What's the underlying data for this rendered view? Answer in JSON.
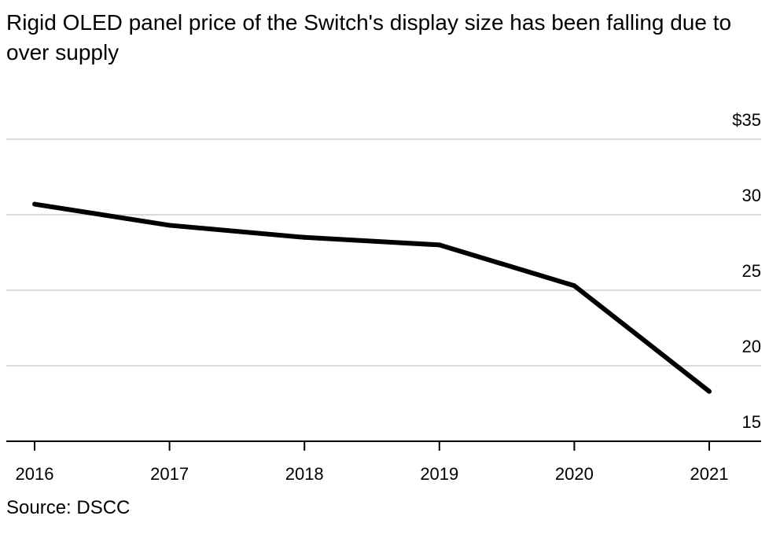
{
  "chart_data": {
    "type": "line",
    "title": "Rigid OLED panel price of the Switch's display size has been falling due to over supply",
    "categories": [
      "2016",
      "2017",
      "2018",
      "2019",
      "2020",
      "2021"
    ],
    "series": [
      {
        "name": "Rigid OLED panel price",
        "values": [
          30.7,
          29.3,
          28.5,
          28.0,
          25.3,
          18.3
        ]
      }
    ],
    "ylim": [
      15,
      35
    ],
    "yticks": [
      {
        "value": 35,
        "label": "$35"
      },
      {
        "value": 30,
        "label": "30"
      },
      {
        "value": 25,
        "label": "25"
      },
      {
        "value": 20,
        "label": "20"
      },
      {
        "value": 15,
        "label": "15"
      }
    ],
    "xlabel": "",
    "ylabel": "",
    "grid": true,
    "colors": {
      "line": "#000000",
      "grid": "#d9d9d9",
      "axis": "#000000"
    }
  },
  "source": "Source: DSCC"
}
